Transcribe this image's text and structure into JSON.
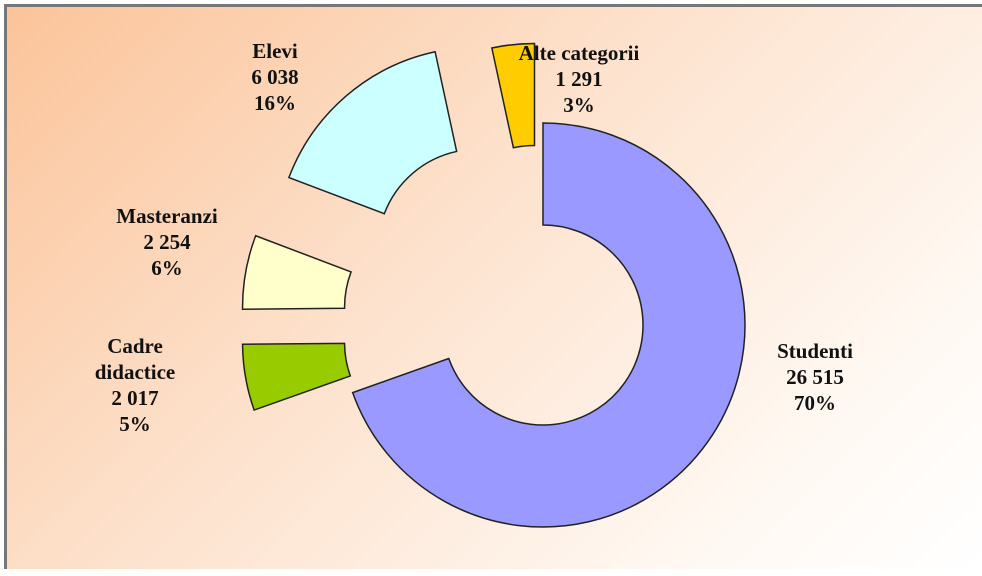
{
  "chart_data": {
    "type": "donut",
    "categories": [
      "Studenti",
      "Cadre didactice",
      "Masteranzi",
      "Elevi",
      "Alte categorii"
    ],
    "values": [
      26515,
      2017,
      2254,
      6038,
      1291
    ],
    "value_labels": [
      "26 515",
      "2 017",
      "2 254",
      "6 038",
      "1 291"
    ],
    "percent_labels": [
      "70%",
      "5%",
      "6%",
      "16%",
      "3%"
    ],
    "colors": [
      "#9999ff",
      "#99cc00",
      "#ffffcc",
      "#ccffff",
      "#ffcc00"
    ]
  }
}
